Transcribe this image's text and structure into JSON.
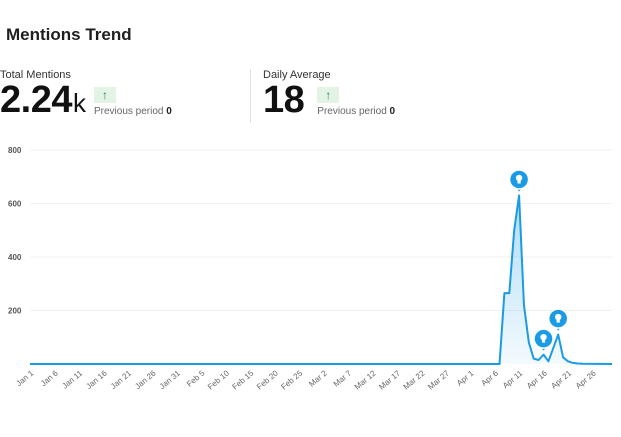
{
  "header": {
    "title": "Mentions Trend"
  },
  "stats": [
    {
      "label": "Total Mentions",
      "value": "2.24",
      "unit": "k",
      "trend_icon": "arrow-up-icon",
      "prev_label": "Previous period",
      "prev_value": "0"
    },
    {
      "label": "Daily Average",
      "value": "18",
      "unit": "",
      "trend_icon": "arrow-up-icon",
      "prev_label": "Previous period",
      "prev_value": "0"
    }
  ],
  "chart_data": {
    "type": "area",
    "ylim": [
      0,
      800
    ],
    "yticks": [
      200,
      400,
      600,
      800
    ],
    "xlabels": [
      "Jan 1",
      "Jan 6",
      "Jan 11",
      "Jan 16",
      "Jan 21",
      "Jan 26",
      "Jan 31",
      "Feb 5",
      "Feb 10",
      "Feb 15",
      "Feb 20",
      "Feb 25",
      "Mar 2",
      "Mar 7",
      "Mar 12",
      "Mar 17",
      "Mar 22",
      "Mar 27",
      "Apr 1",
      "Apr 6",
      "Apr 11",
      "Apr 16",
      "Apr 21",
      "Apr 26"
    ],
    "series": [
      {
        "color": "#1a9be6",
        "points": [
          [
            "Jan 1",
            0
          ],
          [
            "Apr 7",
            0
          ],
          [
            "Apr 8",
            265
          ],
          [
            "Apr 9",
            265
          ],
          [
            "Apr 10",
            500
          ],
          [
            "Apr 11",
            630
          ],
          [
            "Apr 12",
            220
          ],
          [
            "Apr 13",
            80
          ],
          [
            "Apr 14",
            20
          ],
          [
            "Apr 15",
            15
          ],
          [
            "Apr 16",
            35
          ],
          [
            "Apr 17",
            10
          ],
          [
            "Apr 18",
            60
          ],
          [
            "Apr 19",
            110
          ],
          [
            "Apr 20",
            25
          ],
          [
            "Apr 21",
            10
          ],
          [
            "Apr 22",
            4
          ],
          [
            "Apr 23",
            2
          ],
          [
            "Apr 24",
            1
          ],
          [
            "Apr 30",
            0
          ]
        ]
      }
    ],
    "annotations": [
      {
        "x": "Apr 11",
        "y": 630,
        "icon": "lightbulb-icon"
      },
      {
        "x": "Apr 16",
        "y": 35,
        "icon": "lightbulb-icon"
      },
      {
        "x": "Apr 19",
        "y": 110,
        "icon": "lightbulb-icon"
      }
    ]
  }
}
